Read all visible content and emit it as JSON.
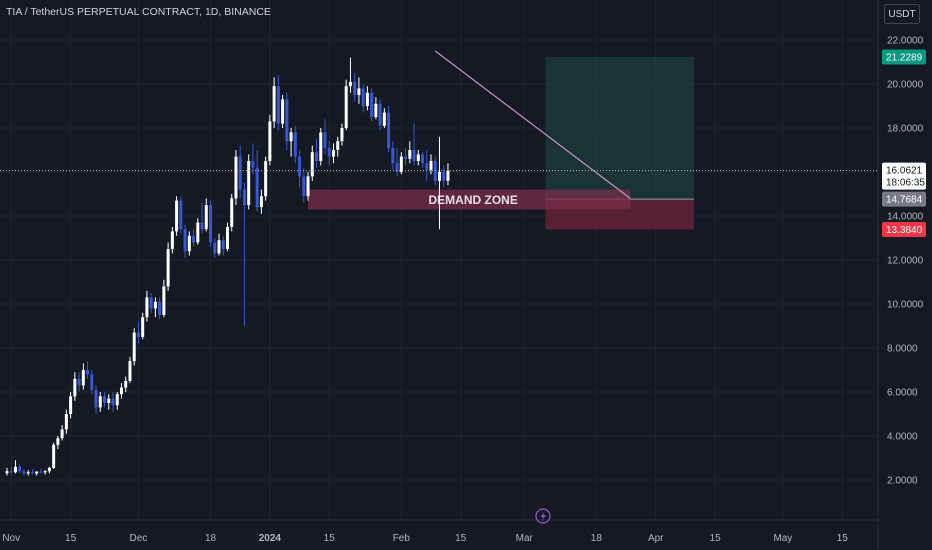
{
  "header": {
    "title": "TIA / TetherUS PERPETUAL CONTRACT, 1D, BINANCE",
    "currency": "USDT"
  },
  "colors": {
    "background": "#151924",
    "up": "#ffffff",
    "down": "#3658d6",
    "trendline": "#c990c8",
    "demand_zone": "#7a2d4a",
    "profit_zone": "#1f4a44",
    "loss_zone": "#6e2436",
    "badge_target": "#089981",
    "badge_entry": "#787b86",
    "badge_stop": "#f23645",
    "badge_last": "#ffffff"
  },
  "chart_data": {
    "type": "candlestick",
    "title": "TIA / TetherUS PERPETUAL CONTRACT, 1D, BINANCE",
    "y_range": [
      1.0,
      22.5
    ],
    "y_ticks": [
      "22.0000",
      "20.0000",
      "18.0000",
      "16.0000",
      "14.0000",
      "12.0000",
      "10.0000",
      "8.0000",
      "6.0000",
      "4.0000",
      "2.0000"
    ],
    "x_range": [
      "2023-10-31",
      "2024-05-21"
    ],
    "x_ticks": [
      {
        "label": "Nov",
        "date": "2023-11-01",
        "bold": false
      },
      {
        "label": "15",
        "date": "2023-11-15",
        "bold": false
      },
      {
        "label": "Dec",
        "date": "2023-12-01",
        "bold": false
      },
      {
        "label": "18",
        "date": "2023-12-18",
        "bold": false
      },
      {
        "label": "2024",
        "date": "2024-01-01",
        "bold": true
      },
      {
        "label": "15",
        "date": "2024-01-15",
        "bold": false
      },
      {
        "label": "Feb",
        "date": "2024-02-01",
        "bold": false
      },
      {
        "label": "15",
        "date": "2024-02-15",
        "bold": false
      },
      {
        "label": "Mar",
        "date": "2024-03-01",
        "bold": false
      },
      {
        "label": "18",
        "date": "2024-03-18",
        "bold": false
      },
      {
        "label": "Apr",
        "date": "2024-04-01",
        "bold": false
      },
      {
        "label": "15",
        "date": "2024-04-15",
        "bold": false
      },
      {
        "label": "May",
        "date": "2024-05-01",
        "bold": false
      },
      {
        "label": "15",
        "date": "2024-05-15",
        "bold": false
      }
    ],
    "first_candle_date": "2023-10-31",
    "candles": [
      [
        2.3,
        2.55,
        2.2,
        2.4
      ],
      [
        2.4,
        2.6,
        2.25,
        2.35
      ],
      [
        2.35,
        2.9,
        2.3,
        2.6
      ],
      [
        2.6,
        2.7,
        2.3,
        2.4
      ],
      [
        2.4,
        2.5,
        2.2,
        2.3
      ],
      [
        2.3,
        2.45,
        2.2,
        2.35
      ],
      [
        2.35,
        2.5,
        2.25,
        2.3
      ],
      [
        2.3,
        2.4,
        2.2,
        2.38
      ],
      [
        2.38,
        2.5,
        2.3,
        2.35
      ],
      [
        2.35,
        2.45,
        2.25,
        2.4
      ],
      [
        2.4,
        2.6,
        2.3,
        2.55
      ],
      [
        2.55,
        3.7,
        2.5,
        3.6
      ],
      [
        3.6,
        4.0,
        3.4,
        3.9
      ],
      [
        3.9,
        4.5,
        3.8,
        4.3
      ],
      [
        4.3,
        5.2,
        4.1,
        5.0
      ],
      [
        5.0,
        6.0,
        4.8,
        5.8
      ],
      [
        5.8,
        6.9,
        5.6,
        6.6
      ],
      [
        6.6,
        6.9,
        6.0,
        6.3
      ],
      [
        6.3,
        7.3,
        6.1,
        7.0
      ],
      [
        7.0,
        7.4,
        6.6,
        6.8
      ],
      [
        6.8,
        7.0,
        5.9,
        6.1
      ],
      [
        6.1,
        6.3,
        5.0,
        5.3
      ],
      [
        5.3,
        6.0,
        5.1,
        5.8
      ],
      [
        5.8,
        6.0,
        5.3,
        5.5
      ],
      [
        5.5,
        5.9,
        5.2,
        5.7
      ],
      [
        5.7,
        6.0,
        5.1,
        5.4
      ],
      [
        5.4,
        6.0,
        5.2,
        5.9
      ],
      [
        5.9,
        6.4,
        5.7,
        6.2
      ],
      [
        6.2,
        6.7,
        6.0,
        6.5
      ],
      [
        6.5,
        7.6,
        6.4,
        7.4
      ],
      [
        7.4,
        8.9,
        7.2,
        8.7
      ],
      [
        8.7,
        9.2,
        8.2,
        8.5
      ],
      [
        8.5,
        9.6,
        8.4,
        9.4
      ],
      [
        9.4,
        10.6,
        9.2,
        10.3
      ],
      [
        10.3,
        10.5,
        9.6,
        9.8
      ],
      [
        9.8,
        10.3,
        9.4,
        10.1
      ],
      [
        10.1,
        10.3,
        9.3,
        9.5
      ],
      [
        9.5,
        11.1,
        9.4,
        10.8
      ],
      [
        10.8,
        12.8,
        10.6,
        12.5
      ],
      [
        12.5,
        13.5,
        12.3,
        13.3
      ],
      [
        13.3,
        14.9,
        13.1,
        14.7
      ],
      [
        14.7,
        14.9,
        13.2,
        13.4
      ],
      [
        13.4,
        13.6,
        12.1,
        12.4
      ],
      [
        12.4,
        13.3,
        12.2,
        13.1
      ],
      [
        13.1,
        13.4,
        12.6,
        12.8
      ],
      [
        12.8,
        13.9,
        12.7,
        13.7
      ],
      [
        13.7,
        14.6,
        13.2,
        13.4
      ],
      [
        13.4,
        14.8,
        13.3,
        14.5
      ],
      [
        14.5,
        14.7,
        12.6,
        12.8
      ],
      [
        12.8,
        13.0,
        12.1,
        12.3
      ],
      [
        12.3,
        13.2,
        12.2,
        12.9
      ],
      [
        12.9,
        13.1,
        12.2,
        12.5
      ],
      [
        12.5,
        13.7,
        12.4,
        13.5
      ],
      [
        13.5,
        15.0,
        13.3,
        14.8
      ],
      [
        14.8,
        17.0,
        14.5,
        16.7
      ],
      [
        16.7,
        17.2,
        14.8,
        15.2
      ],
      [
        15.2,
        15.5,
        9.0,
        14.5
      ],
      [
        14.5,
        16.8,
        14.3,
        16.5
      ],
      [
        16.5,
        17.3,
        15.9,
        16.2
      ],
      [
        16.2,
        17.0,
        14.2,
        14.4
      ],
      [
        14.4,
        15.2,
        14.1,
        14.9
      ],
      [
        14.9,
        16.7,
        14.7,
        16.5
      ],
      [
        16.5,
        18.6,
        16.3,
        18.3
      ],
      [
        18.3,
        20.3,
        18.0,
        19.9
      ],
      [
        19.9,
        20.4,
        17.9,
        18.2
      ],
      [
        18.2,
        19.5,
        18.0,
        19.3
      ],
      [
        19.3,
        19.6,
        17.0,
        17.4
      ],
      [
        17.4,
        18.0,
        16.7,
        17.8
      ],
      [
        17.8,
        18.1,
        16.4,
        16.7
      ],
      [
        16.7,
        17.0,
        15.3,
        15.8
      ],
      [
        15.8,
        16.2,
        14.6,
        14.9
      ],
      [
        14.9,
        16.0,
        14.7,
        15.8
      ],
      [
        15.8,
        17.2,
        15.6,
        16.9
      ],
      [
        16.9,
        17.5,
        16.2,
        16.5
      ],
      [
        16.5,
        18.0,
        16.3,
        17.8
      ],
      [
        17.8,
        18.4,
        16.8,
        17.1
      ],
      [
        17.1,
        17.4,
        16.3,
        16.7
      ],
      [
        16.7,
        17.3,
        16.4,
        17.0
      ],
      [
        17.0,
        17.6,
        16.7,
        17.4
      ],
      [
        17.4,
        18.2,
        17.2,
        18.0
      ],
      [
        18.0,
        20.2,
        17.9,
        19.9
      ],
      [
        19.9,
        21.2,
        19.6,
        20.1
      ],
      [
        20.1,
        20.5,
        19.2,
        19.5
      ],
      [
        19.5,
        20.3,
        19.1,
        19.8
      ],
      [
        19.8,
        20.0,
        18.7,
        19.0
      ],
      [
        19.0,
        19.9,
        18.8,
        19.6
      ],
      [
        19.6,
        19.8,
        18.3,
        18.5
      ],
      [
        18.5,
        19.4,
        18.4,
        19.1
      ],
      [
        19.1,
        19.3,
        17.9,
        18.1
      ],
      [
        18.1,
        18.9,
        18.0,
        18.7
      ],
      [
        18.7,
        19.0,
        16.9,
        17.1
      ],
      [
        17.1,
        17.4,
        16.1,
        16.4
      ],
      [
        16.4,
        17.1,
        15.8,
        16.0
      ],
      [
        16.0,
        16.9,
        15.9,
        16.7
      ],
      [
        16.7,
        17.1,
        16.3,
        16.6
      ],
      [
        16.6,
        17.4,
        16.4,
        17.0
      ],
      [
        17.0,
        18.2,
        16.3,
        16.5
      ],
      [
        16.5,
        17.0,
        16.3,
        16.8
      ],
      [
        16.8,
        16.9,
        16.2,
        16.4
      ],
      [
        16.4,
        17.0,
        15.6,
        16.1
      ],
      [
        16.1,
        16.8,
        15.9,
        16.5
      ],
      [
        16.5,
        16.7,
        15.4,
        15.6
      ],
      [
        15.6,
        17.6,
        13.4,
        16.0
      ],
      [
        16.0,
        16.3,
        15.3,
        15.6
      ],
      [
        15.6,
        16.4,
        15.4,
        16.06
      ]
    ],
    "trendline": {
      "start": {
        "date": "2024-02-09",
        "price": 21.5
      },
      "end": {
        "date": "2024-03-26",
        "price": 14.8
      }
    },
    "demand_zone": {
      "label": "DEMAND ZONE",
      "date_start": "2024-01-10",
      "date_end": "2024-03-26",
      "price_top": 15.2,
      "price_bottom": 14.3
    },
    "position": {
      "date_start": "2024-03-06",
      "date_end": "2024-04-10",
      "entry": 14.7684,
      "target": 21.2289,
      "stop": 13.384
    },
    "price_labels": {
      "target": "21.2289",
      "last": "16.0621",
      "countdown": "18:06:35",
      "entry": "14.7684",
      "stop": "13.3840"
    },
    "last_price": 16.0621
  }
}
